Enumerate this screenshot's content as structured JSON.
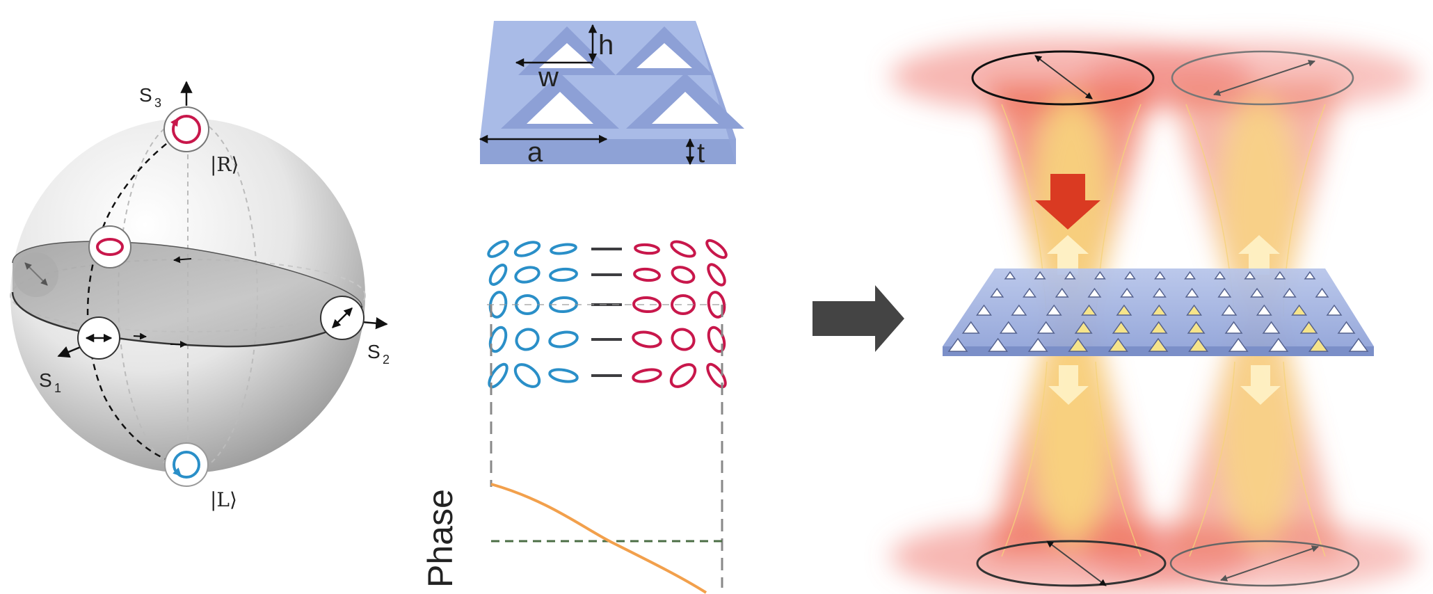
{
  "sphere": {
    "s1_label": "S",
    "s1_sub": "1",
    "s2_label": "S",
    "s2_sub": "2",
    "s3_label": "S",
    "s3_sub": "3",
    "ket_r": "|R⟩",
    "ket_l": "|L⟩"
  },
  "unit_cell": {
    "h_label": "h",
    "w_label": "w",
    "a_label": "a",
    "t_label": "t"
  },
  "phase_plot": {
    "ylabel": "Phase"
  },
  "colors": {
    "blue": "#2a8fc8",
    "red": "#c8174b",
    "dark_dash": "#3d3d40",
    "phase_curve": "#f2a04c",
    "phase_ref": "#4b6e45",
    "slab": "#a4b6e4",
    "arrow": "#444444"
  },
  "icons": [
    "double-arrow-icon",
    "circular-polarization-icon",
    "big-right-arrow-icon",
    "polarization-ellipse-icon"
  ]
}
